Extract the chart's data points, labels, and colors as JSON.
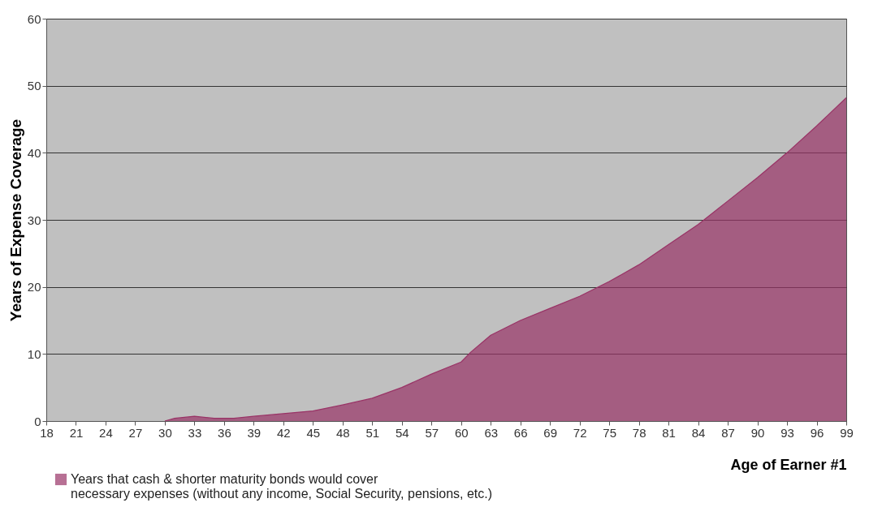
{
  "chart_data": {
    "type": "area",
    "xlabel": "Age of Earner #1",
    "ylabel": "Years of Expense Coverage",
    "x": [
      30,
      31,
      33,
      35,
      37,
      39,
      42,
      45,
      48,
      51,
      54,
      57,
      60,
      61,
      63,
      66,
      69,
      72,
      75,
      78,
      81,
      84,
      87,
      90,
      93,
      96,
      99
    ],
    "series": [
      {
        "name": "Years that cash & shorter maturity bonds would cover necessary expenses (without any income, Social Security, pensions, etc.)",
        "color": "#993366",
        "values": [
          0,
          0.4,
          0.7,
          0.4,
          0.4,
          0.7,
          1.1,
          1.5,
          2.4,
          3.4,
          5.0,
          7.0,
          8.8,
          10.3,
          12.8,
          15.0,
          16.8,
          18.6,
          20.8,
          23.3,
          26.3,
          29.3,
          32.8,
          36.3,
          40.0,
          44.0,
          48.2
        ]
      }
    ],
    "xlim": [
      18,
      99
    ],
    "xticks": [
      18,
      21,
      24,
      27,
      30,
      33,
      36,
      39,
      42,
      45,
      48,
      51,
      54,
      57,
      60,
      63,
      66,
      69,
      72,
      75,
      78,
      81,
      84,
      87,
      90,
      93,
      96,
      99
    ],
    "ylim": [
      0,
      60
    ],
    "yticks": [
      0,
      10,
      20,
      30,
      40,
      50,
      60
    ],
    "grid": "y",
    "legend": "bottom left"
  }
}
